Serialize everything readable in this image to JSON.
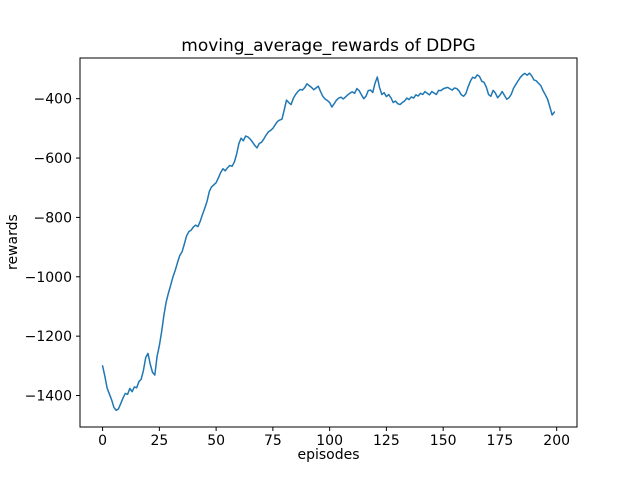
{
  "chart_data": {
    "type": "line",
    "title": "moving_average_rewards of DDPG",
    "xlabel": "episodes",
    "ylabel": "rewards",
    "grid": false,
    "xlim": [
      -9.95,
      208.95
    ],
    "ylim": [
      -1506,
      -263
    ],
    "x_ticks": [
      0,
      25,
      50,
      75,
      100,
      125,
      150,
      175,
      200
    ],
    "y_ticks": [
      -400,
      -600,
      -800,
      -1000,
      -1200,
      -1400
    ],
    "background_color": "#ffffff",
    "spine_color": "#000000",
    "series": [
      {
        "name": "moving_average_rewards",
        "color": "#1f77b4",
        "x_start": 0,
        "x_step": 1,
        "values": [
          -1300,
          -1335,
          -1375,
          -1395,
          -1415,
          -1440,
          -1450,
          -1445,
          -1427,
          -1408,
          -1393,
          -1396,
          -1376,
          -1387,
          -1371,
          -1374,
          -1353,
          -1345,
          -1315,
          -1272,
          -1258,
          -1295,
          -1322,
          -1331,
          -1268,
          -1232,
          -1185,
          -1130,
          -1085,
          -1055,
          -1028,
          -1000,
          -978,
          -952,
          -928,
          -916,
          -890,
          -862,
          -848,
          -843,
          -832,
          -826,
          -831,
          -813,
          -790,
          -769,
          -746,
          -713,
          -697,
          -690,
          -683,
          -667,
          -649,
          -636,
          -643,
          -633,
          -625,
          -628,
          -614,
          -588,
          -552,
          -533,
          -542,
          -526,
          -529,
          -536,
          -546,
          -557,
          -566,
          -551,
          -547,
          -536,
          -523,
          -512,
          -507,
          -500,
          -488,
          -477,
          -472,
          -469,
          -438,
          -405,
          -413,
          -420,
          -399,
          -386,
          -376,
          -369,
          -371,
          -363,
          -350,
          -356,
          -362,
          -370,
          -364,
          -358,
          -376,
          -392,
          -401,
          -406,
          -413,
          -428,
          -417,
          -405,
          -398,
          -395,
          -401,
          -394,
          -387,
          -381,
          -377,
          -382,
          -366,
          -373,
          -387,
          -400,
          -392,
          -373,
          -371,
          -379,
          -348,
          -327,
          -363,
          -386,
          -380,
          -393,
          -386,
          -397,
          -413,
          -408,
          -417,
          -420,
          -413,
          -408,
          -398,
          -403,
          -394,
          -398,
          -387,
          -391,
          -382,
          -386,
          -376,
          -382,
          -387,
          -376,
          -381,
          -386,
          -372,
          -373,
          -367,
          -364,
          -362,
          -367,
          -371,
          -364,
          -366,
          -374,
          -387,
          -392,
          -383,
          -360,
          -341,
          -328,
          -331,
          -320,
          -325,
          -341,
          -345,
          -361,
          -386,
          -392,
          -372,
          -381,
          -397,
          -388,
          -376,
          -389,
          -402,
          -397,
          -385,
          -365,
          -352,
          -340,
          -328,
          -320,
          -315,
          -321,
          -314,
          -323,
          -337,
          -340,
          -348,
          -356,
          -373,
          -387,
          -402,
          -428,
          -455,
          -445
        ]
      }
    ]
  }
}
